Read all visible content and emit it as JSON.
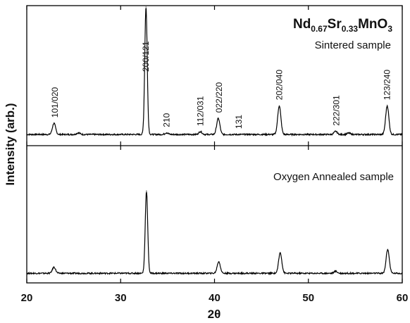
{
  "chart_data": {
    "type": "line",
    "xlabel": "2θ",
    "ylabel": "Intensity (arb.)",
    "xlim": [
      20,
      60
    ],
    "x_ticks": [
      20,
      30,
      40,
      50,
      60
    ],
    "x_tick_labels": [
      "20",
      "30",
      "40",
      "50",
      "60"
    ],
    "formula": {
      "p1": "Nd",
      "s1": "0.67",
      "p2": "Sr",
      "s2": "0.33",
      "p3": "MnO",
      "s3": "3"
    },
    "panels": [
      {
        "name": "top",
        "label": "Sintered sample",
        "ylim": [
          0,
          1
        ],
        "baseline": 0.08,
        "noise": 0.005,
        "peaks": [
          {
            "x": 22.9,
            "height": 0.08
          },
          {
            "x": 25.5,
            "height": 0.012
          },
          {
            "x": 32.7,
            "height": 0.91
          },
          {
            "x": 34.9,
            "height": 0.012
          },
          {
            "x": 38.5,
            "height": 0.02
          },
          {
            "x": 40.4,
            "height": 0.115
          },
          {
            "x": 46.9,
            "height": 0.205
          },
          {
            "x": 52.9,
            "height": 0.022
          },
          {
            "x": 54.3,
            "height": 0.01
          },
          {
            "x": 58.4,
            "height": 0.205
          }
        ]
      },
      {
        "name": "bottom",
        "label": "Oxygen Annealed sample",
        "ylim": [
          0,
          1
        ],
        "baseline": 0.07,
        "noise": 0.005,
        "peaks": [
          {
            "x": 22.9,
            "height": 0.045
          },
          {
            "x": 32.75,
            "height": 0.6
          },
          {
            "x": 40.45,
            "height": 0.085
          },
          {
            "x": 47.0,
            "height": 0.15
          },
          {
            "x": 52.9,
            "height": 0.015
          },
          {
            "x": 58.45,
            "height": 0.175
          }
        ]
      }
    ],
    "peak_labels": [
      {
        "x": 23.0,
        "text": "101/020"
      },
      {
        "x": 32.7,
        "text": "200/121"
      },
      {
        "x": 34.9,
        "text": "210"
      },
      {
        "x": 38.5,
        "text": "112/031"
      },
      {
        "x": 40.5,
        "text": "022/220"
      },
      {
        "x": 42.6,
        "text": "131"
      },
      {
        "x": 46.9,
        "text": "202/040"
      },
      {
        "x": 53.0,
        "text": "222/301"
      },
      {
        "x": 58.4,
        "text": "123/240"
      }
    ]
  }
}
